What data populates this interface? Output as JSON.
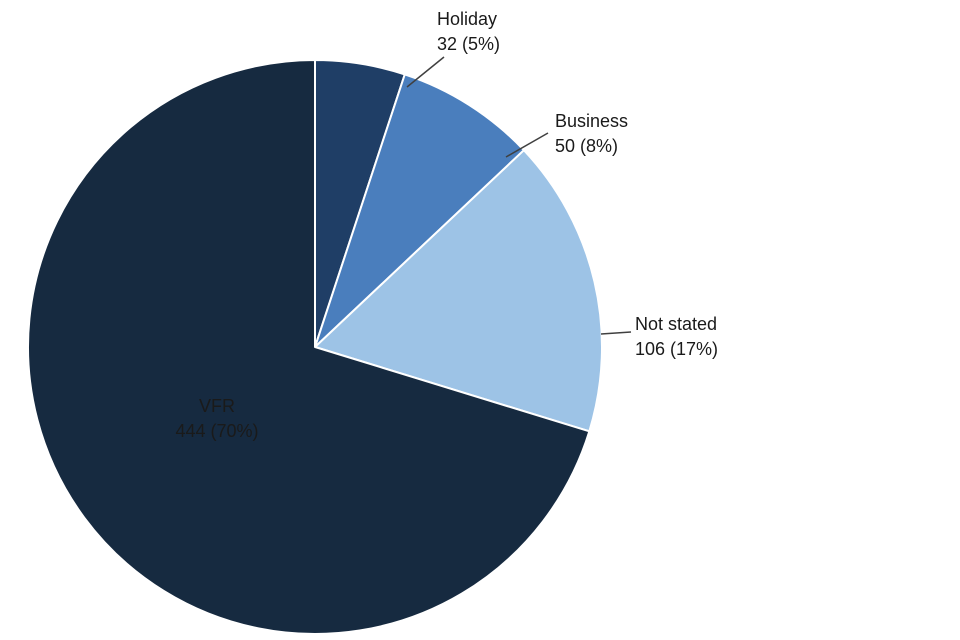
{
  "chart_data": {
    "type": "pie",
    "title": "",
    "total": 632,
    "start_angle_deg": 0,
    "direction": "clockwise",
    "background_color": "#ffffff",
    "slice_border_color": "#ffffff",
    "leader_line_color": "#404040",
    "slices": [
      {
        "label": "Holiday",
        "value": 32,
        "value_label": "32 (5%)",
        "pct": 5,
        "color": "#1f3e66",
        "label_placement": "outside",
        "label_color": "#1a1a1a"
      },
      {
        "label": "Business",
        "value": 50,
        "value_label": "50 (8%)",
        "pct": 8,
        "color": "#4a7ebd",
        "label_placement": "outside",
        "label_color": "#1a1a1a"
      },
      {
        "label": "Not stated",
        "value": 106,
        "value_label": "106 (17%)",
        "pct": 17,
        "color": "#9dc3e6",
        "label_placement": "outside",
        "label_color": "#1a1a1a"
      },
      {
        "label": "VFR",
        "value": 444,
        "value_label": "444 (70%)",
        "pct": 70,
        "color": "#162a40",
        "label_placement": "inside",
        "label_color": "#ffffff"
      }
    ]
  }
}
